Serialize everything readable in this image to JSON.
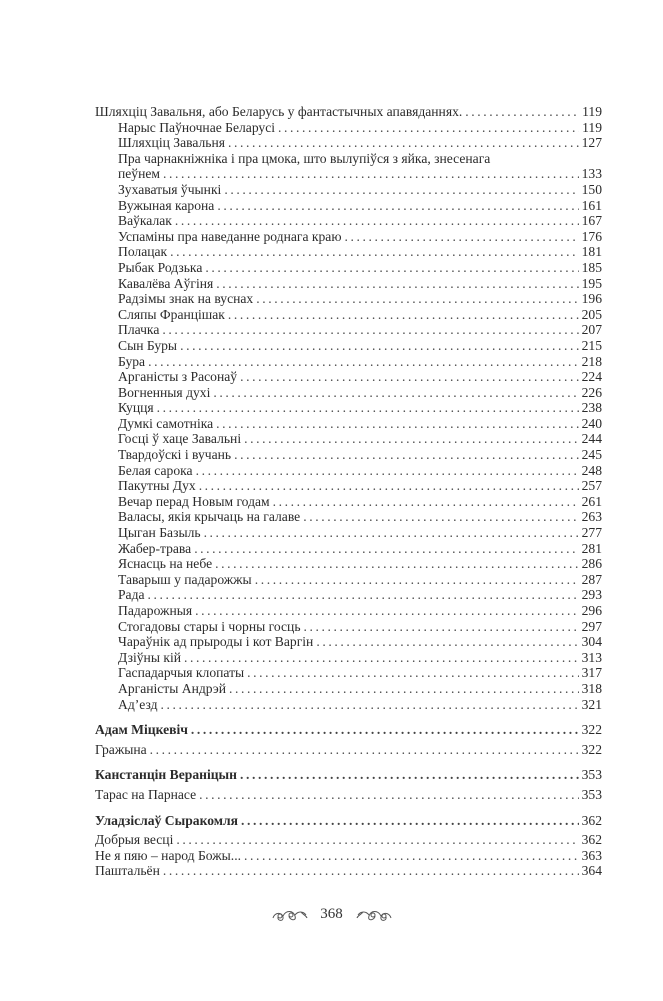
{
  "toc": [
    {
      "title": "Шляхціц Завальня, або Беларусь у фантастычных апавяданнях.",
      "page": "119",
      "level": "main"
    },
    {
      "title": "Нарыс Паўночнае Беларусі",
      "page": "119",
      "level": "sub"
    },
    {
      "title": "Шляхціц Завальня",
      "page": "127",
      "level": "sub"
    },
    {
      "title": "Пра чарнакніжніка і пра цмока, што вылупіўся з яйка, знесенага",
      "title_cont": "пеўнем",
      "page": "133",
      "level": "sub"
    },
    {
      "title": "Зухаватыя ўчынкі",
      "page": "150",
      "level": "sub"
    },
    {
      "title": "Вужыная карона",
      "page": "161",
      "level": "sub"
    },
    {
      "title": "Ваўкалак",
      "page": "167",
      "level": "sub"
    },
    {
      "title": "Успаміны пра наведанне роднага краю",
      "page": "176",
      "level": "sub"
    },
    {
      "title": "Полацак",
      "page": "181",
      "level": "sub"
    },
    {
      "title": "Рыбак Родзька",
      "page": "185",
      "level": "sub"
    },
    {
      "title": "Кавалёва Аўгіня",
      "page": "195",
      "level": "sub"
    },
    {
      "title": "Радзімы знак на вуснах",
      "page": "196",
      "level": "sub"
    },
    {
      "title": "Сляпы Францішак",
      "page": "205",
      "level": "sub"
    },
    {
      "title": "Плачка",
      "page": "207",
      "level": "sub"
    },
    {
      "title": "Сын Буры",
      "page": "215",
      "level": "sub"
    },
    {
      "title": "Бура",
      "page": "218",
      "level": "sub"
    },
    {
      "title": "Арганісты з Расонаў",
      "page": "224",
      "level": "sub"
    },
    {
      "title": "Вогненныя духі",
      "page": "226",
      "level": "sub"
    },
    {
      "title": "Куцця",
      "page": "238",
      "level": "sub"
    },
    {
      "title": "Думкі самотніка",
      "page": "240",
      "level": "sub"
    },
    {
      "title": "Госці ў хаце Завальні",
      "page": "244",
      "level": "sub"
    },
    {
      "title": "Твардоўскі і вучань",
      "page": "245",
      "level": "sub"
    },
    {
      "title": "Белая сарока",
      "page": "248",
      "level": "sub"
    },
    {
      "title": "Пакутны Дух",
      "page": "257",
      "level": "sub"
    },
    {
      "title": "Вечар перад Новым годам",
      "page": "261",
      "level": "sub"
    },
    {
      "title": "Валасы, якія крычаць на галаве",
      "page": "263",
      "level": "sub"
    },
    {
      "title": "Цыган Базыль",
      "page": "277",
      "level": "sub"
    },
    {
      "title": "Жабер-трава",
      "page": "281",
      "level": "sub"
    },
    {
      "title": "Яснасць на небе",
      "page": "286",
      "level": "sub"
    },
    {
      "title": "Таварыш у падарожжы",
      "page": "287",
      "level": "sub"
    },
    {
      "title": "Рада",
      "page": "293",
      "level": "sub"
    },
    {
      "title": "Падарожныя",
      "page": "296",
      "level": "sub"
    },
    {
      "title": "Стогадовы стары і чорны госць",
      "page": "297",
      "level": "sub"
    },
    {
      "title": "Чараўнік ад прыроды і кот Варгін",
      "page": "304",
      "level": "sub"
    },
    {
      "title": "Дзіўны кій",
      "page": "313",
      "level": "sub"
    },
    {
      "title": "Гаспадарчыя клопаты",
      "page": "317",
      "level": "sub"
    },
    {
      "title": "Арганісты Андрэй",
      "page": "318",
      "level": "sub"
    },
    {
      "title": "Ад’езд",
      "page": "321",
      "level": "sub"
    },
    {
      "title": "Адам Міцкевіч",
      "page": "322",
      "level": "author"
    },
    {
      "title": "Гражына",
      "page": "322",
      "level": "work"
    },
    {
      "title": "Канстанцін Вераніцын",
      "page": "353",
      "level": "author"
    },
    {
      "title": "Тарас на Парнасе",
      "page": "353",
      "level": "work"
    },
    {
      "title": "Уладзіслаў Сыракомля",
      "page": "362",
      "level": "author"
    },
    {
      "title": "Добрыя весці",
      "page": "362",
      "level": "work"
    },
    {
      "title": "Не я пяю – народ Божы...",
      "page": "363",
      "level": "work"
    },
    {
      "title": "Паштальён",
      "page": "364",
      "level": "work"
    }
  ],
  "footer": {
    "page_number": "368",
    "ornament": "floral-scroll"
  },
  "colors": {
    "text": "#2b2b2b",
    "background": "#ffffff"
  }
}
